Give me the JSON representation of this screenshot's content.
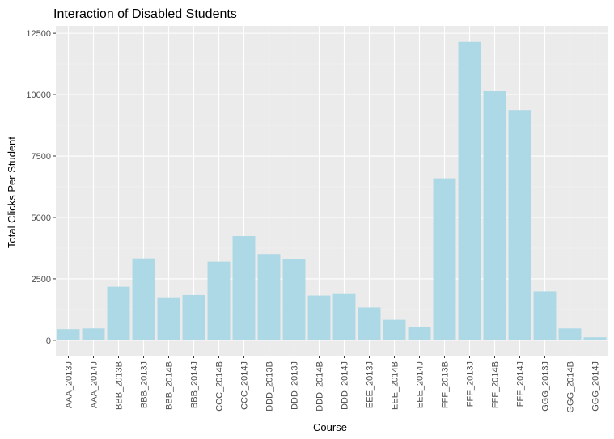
{
  "chart_data": {
    "type": "bar",
    "title": "Interaction of Disabled Students",
    "xlabel": "Course",
    "ylabel": "Total Clicks Per Student",
    "categories": [
      "AAA_2013J",
      "AAA_2014J",
      "BBB_2013B",
      "BBB_2013J",
      "BBB_2014B",
      "BBB_2014J",
      "CCC_2014B",
      "CCC_2014J",
      "DDD_2013B",
      "DDD_2013J",
      "DDD_2014B",
      "DDD_2014J",
      "EEE_2013J",
      "EEE_2014B",
      "EEE_2014J",
      "FFF_2013B",
      "FFF_2013J",
      "FFF_2014B",
      "FFF_2014J",
      "GGG_2013J",
      "GGG_2014B",
      "GGG_2014J"
    ],
    "values": [
      450,
      480,
      2180,
      3330,
      1750,
      1840,
      3200,
      4240,
      3510,
      3320,
      1820,
      1880,
      1330,
      830,
      540,
      6590,
      12150,
      10150,
      9370,
      1990,
      480,
      120
    ],
    "ylim": [
      -630,
      12800
    ],
    "yticks": [
      0,
      2500,
      5000,
      7500,
      10000,
      12500
    ],
    "ytick_labels": [
      "0",
      "2500",
      "5000",
      "7500",
      "10000",
      "12500"
    ],
    "grid": true,
    "legend": "none",
    "colors": {
      "bar": "#add8e6",
      "panel": "#ebebeb",
      "grid_major": "#ffffff",
      "grid_minor": "#f3f3f3",
      "tick": "#333333"
    }
  }
}
